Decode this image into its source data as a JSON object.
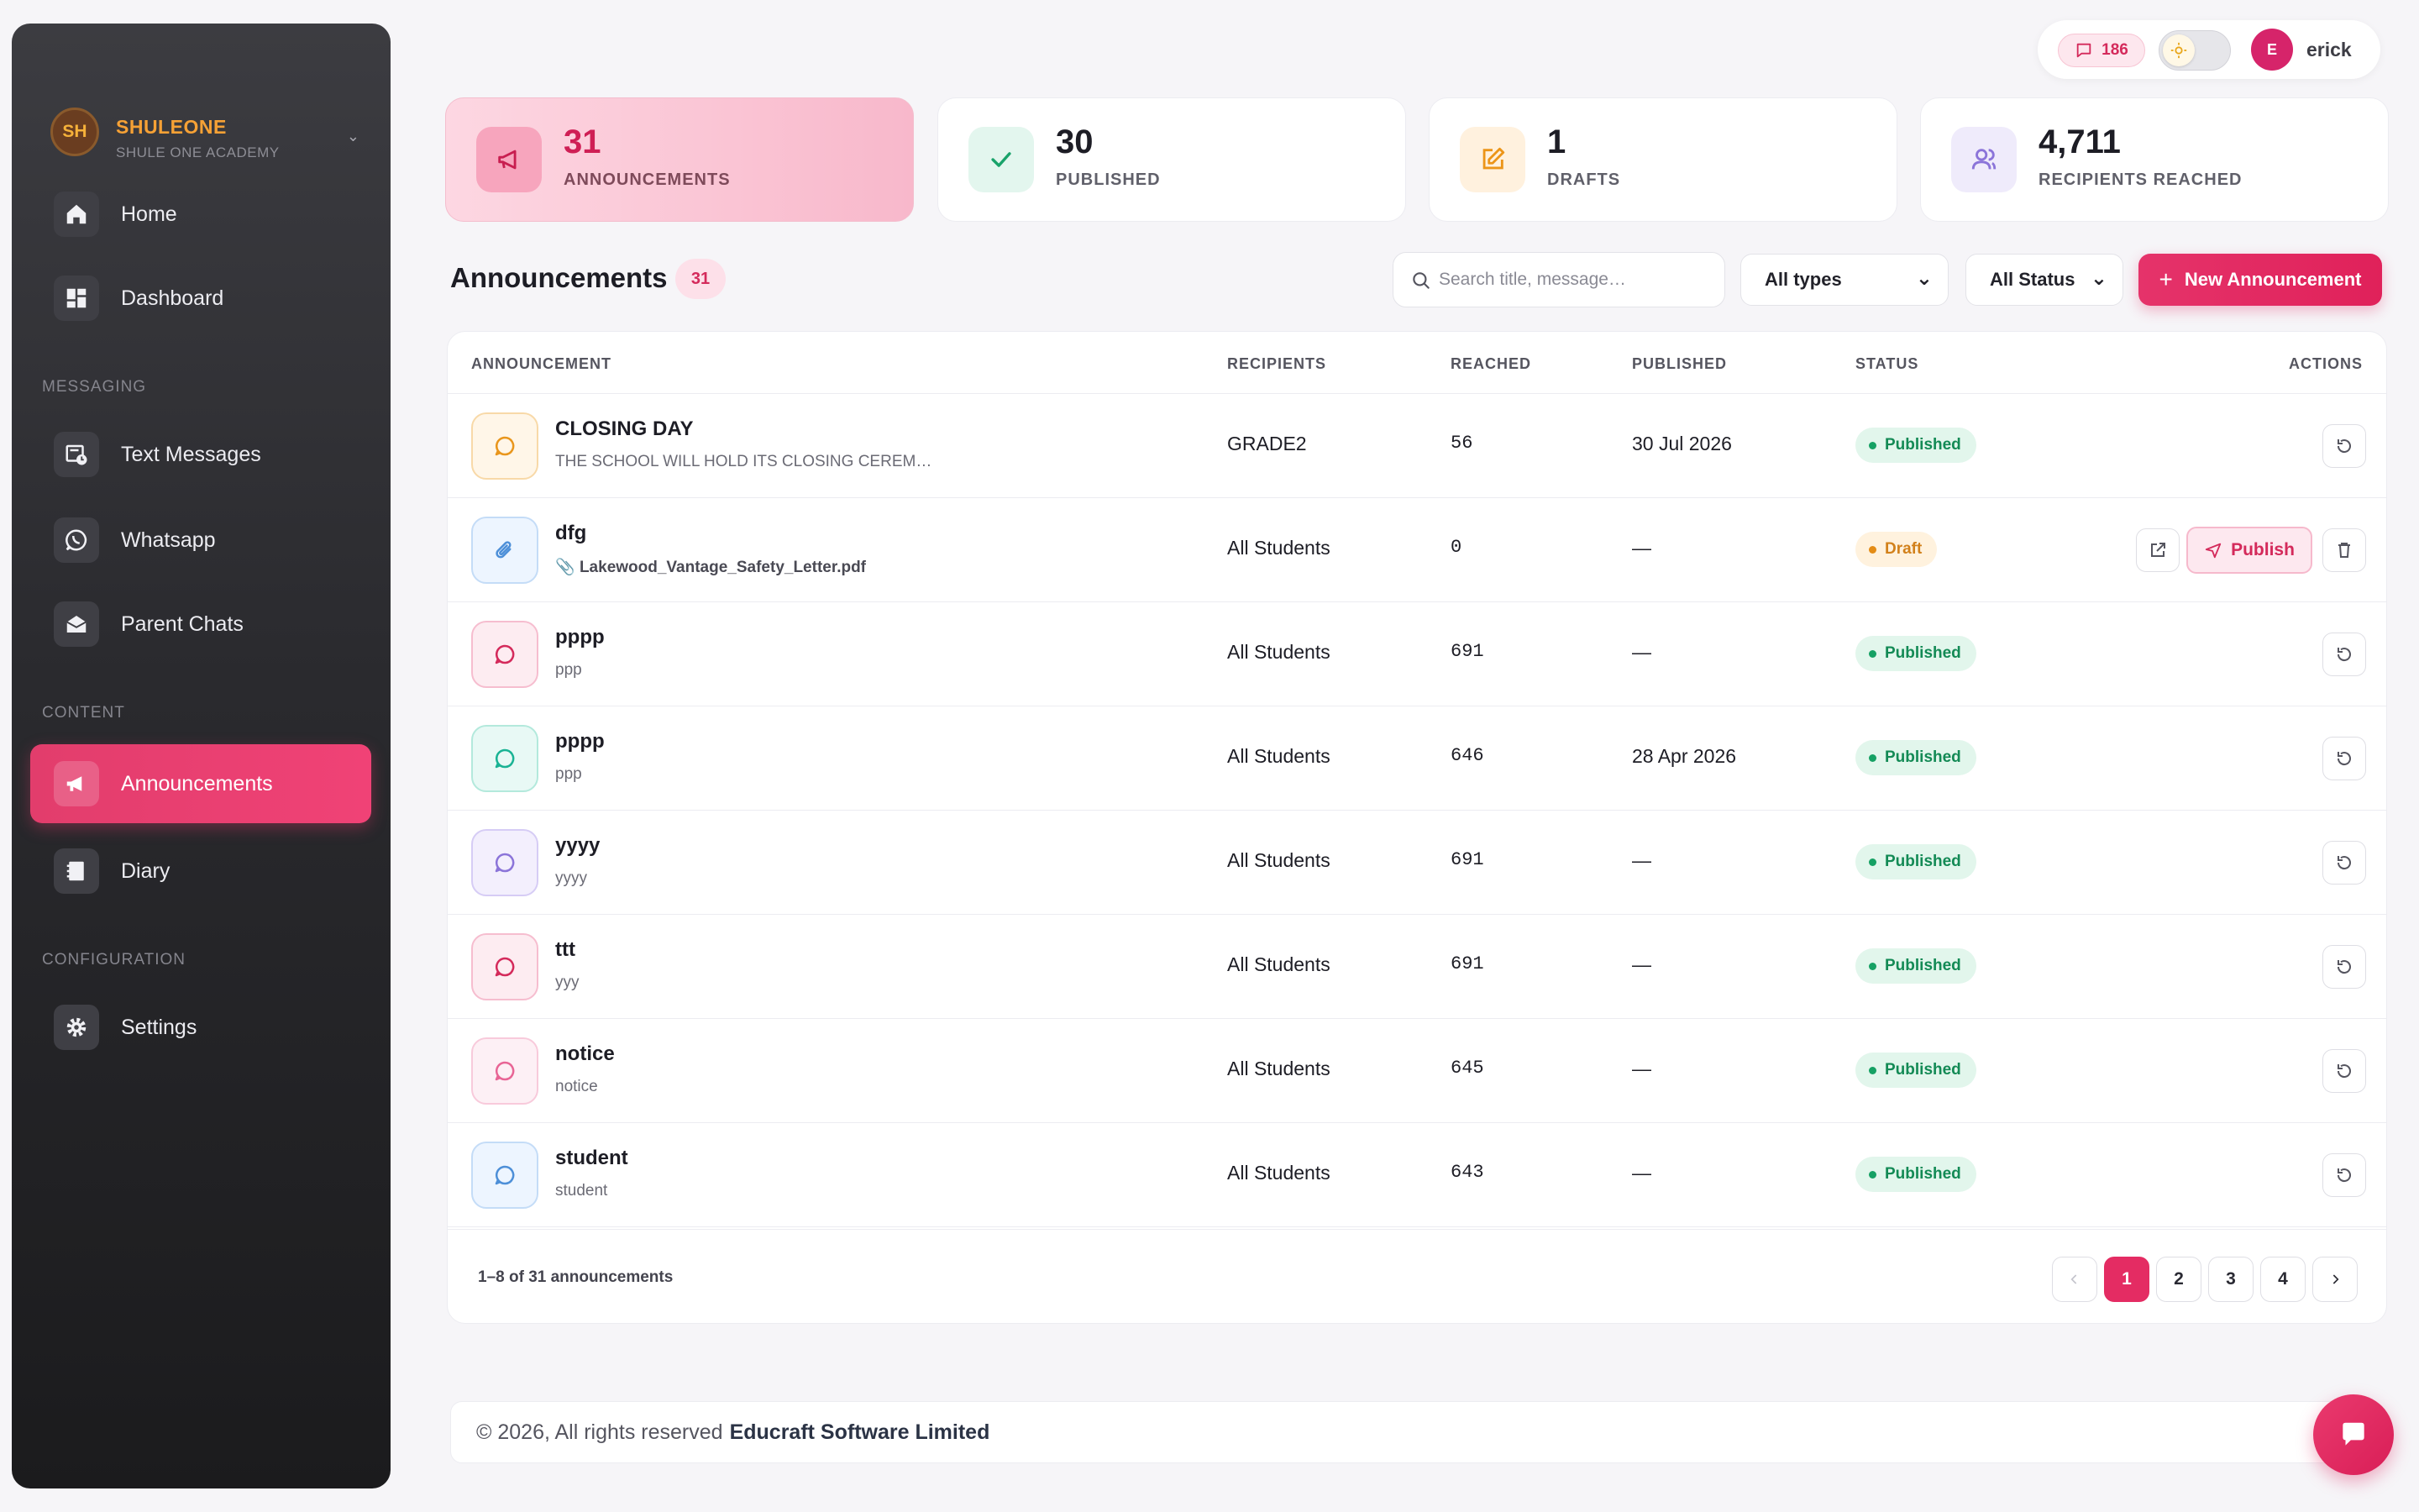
{
  "brand": {
    "initials": "SH",
    "name": "SHULEONE",
    "subtitle": "SHULE ONE ACADEMY"
  },
  "sidebar": {
    "items": [
      {
        "label": "Home",
        "icon": "home-icon"
      },
      {
        "label": "Dashboard",
        "icon": "dashboard-icon"
      }
    ],
    "sections": {
      "messaging": "MESSAGING",
      "content": "CONTENT",
      "configuration": "CONFIGURATION"
    },
    "messaging_items": [
      {
        "label": "Text Messages",
        "icon": "sms-icon"
      },
      {
        "label": "Whatsapp",
        "icon": "whatsapp-icon"
      },
      {
        "label": "Parent Chats",
        "icon": "mail-open-icon"
      }
    ],
    "content_items": [
      {
        "label": "Announcements",
        "icon": "megaphone-icon",
        "active": true
      },
      {
        "label": "Diary",
        "icon": "diary-icon"
      }
    ],
    "config_items": [
      {
        "label": "Settings",
        "icon": "gear-icon"
      }
    ]
  },
  "topbar": {
    "message_count": "186",
    "user_initial": "E",
    "user_name": "erick"
  },
  "stats": [
    {
      "value": "31",
      "label": "ANNOUNCEMENTS",
      "icon": "megaphone-icon"
    },
    {
      "value": "30",
      "label": "PUBLISHED",
      "icon": "check-icon"
    },
    {
      "value": "1",
      "label": "DRAFTS",
      "icon": "edit-icon"
    },
    {
      "value": "4,711",
      "label": "RECIPIENTS REACHED",
      "icon": "users-icon"
    }
  ],
  "toolbar": {
    "title": "Announcements",
    "count": "31",
    "search_placeholder": "Search title, message…",
    "type_filter": "All types",
    "status_filter": "All Status",
    "new_button": "New Announcement"
  },
  "table": {
    "headers": [
      "ANNOUNCEMENT",
      "RECIPIENTS",
      "REACHED",
      "PUBLISHED",
      "STATUS",
      "ACTIONS"
    ],
    "rows": [
      {
        "title": "CLOSING DAY",
        "subtitle": "THE SCHOOL WILL HOLD ITS CLOSING CEREM…",
        "recipients": "GRADE2",
        "reached": "56",
        "published": "30 Jul 2026",
        "status": "Published"
      },
      {
        "title": "dfg",
        "subtitle": "Lakewood_Vantage_Safety_Letter.pdf",
        "recipients": "All Students",
        "reached": "0",
        "published": "—",
        "status": "Draft",
        "publish_label": "Publish"
      },
      {
        "title": "pppp",
        "subtitle": "ppp",
        "recipients": "All Students",
        "reached": "691",
        "published": "—",
        "status": "Published"
      },
      {
        "title": "pppp",
        "subtitle": "ppp",
        "recipients": "All Students",
        "reached": "646",
        "published": "28 Apr 2026",
        "status": "Published"
      },
      {
        "title": "yyyy",
        "subtitle": "yyyy",
        "recipients": "All Students",
        "reached": "691",
        "published": "—",
        "status": "Published"
      },
      {
        "title": "ttt",
        "subtitle": "yyy",
        "recipients": "All Students",
        "reached": "691",
        "published": "—",
        "status": "Published"
      },
      {
        "title": "notice",
        "subtitle": "notice",
        "recipients": "All Students",
        "reached": "645",
        "published": "—",
        "status": "Published"
      },
      {
        "title": "student",
        "subtitle": "student",
        "recipients": "All Students",
        "reached": "643",
        "published": "—",
        "status": "Published"
      }
    ],
    "range_text": "1–8 of 31 announcements",
    "pages": [
      "1",
      "2",
      "3",
      "4"
    ]
  },
  "footer": {
    "prefix": "© 2026, All rights reserved",
    "company": "Educraft Software Limited"
  },
  "colors": {
    "accent": "#e42c63",
    "published": "#16a164",
    "draft": "#e48c16",
    "brand": "#f6a135"
  }
}
